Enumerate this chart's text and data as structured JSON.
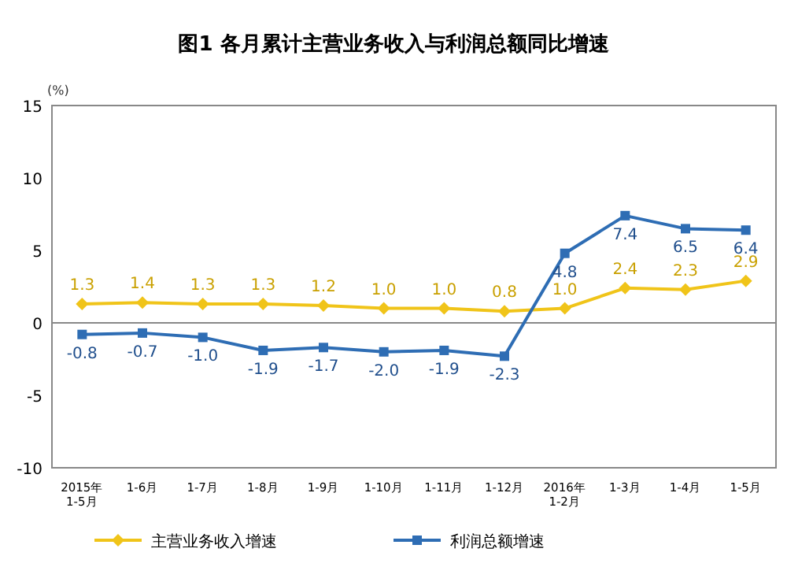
{
  "chart_data": {
    "type": "line",
    "title": "图1  各月累计主营业务收入与利润总额同比增速",
    "ylabel": "(%)",
    "categories": [
      "2015年\n1-5月",
      "1-6月",
      "1-7月",
      "1-8月",
      "1-9月",
      "1-10月",
      "1-11月",
      "1-12月",
      "2016年\n1-2月",
      "1-3月",
      "1-4月",
      "1-5月"
    ],
    "series": [
      {
        "name": "主营业务收入增速",
        "color": "#f0c419",
        "marker": "diamond",
        "values": [
          1.3,
          1.4,
          1.3,
          1.3,
          1.2,
          1.0,
          1.0,
          0.8,
          1.0,
          2.4,
          2.3,
          2.9
        ],
        "value_labels": [
          "1.3",
          "1.4",
          "1.3",
          "1.3",
          "1.2",
          "1.0",
          "1.0",
          "0.8",
          "1.0",
          "2.4",
          "2.3",
          "2.9"
        ]
      },
      {
        "name": "利润总额增速",
        "color": "#2e6db4",
        "marker": "square",
        "values": [
          -0.8,
          -0.7,
          -1.0,
          -1.9,
          -1.7,
          -2.0,
          -1.9,
          -2.3,
          4.8,
          7.4,
          6.5,
          6.4
        ],
        "value_labels": [
          "-0.8",
          "-0.7",
          "-1.0",
          "-1.9",
          "-1.7",
          "-2.0",
          "-1.9",
          "-2.3",
          "4.8",
          "7.4",
          "6.5",
          "6.4"
        ]
      }
    ],
    "ylim": [
      -10,
      15
    ],
    "yticks": [
      -10,
      -5,
      0,
      5,
      10,
      15
    ],
    "legend": "bottom"
  }
}
